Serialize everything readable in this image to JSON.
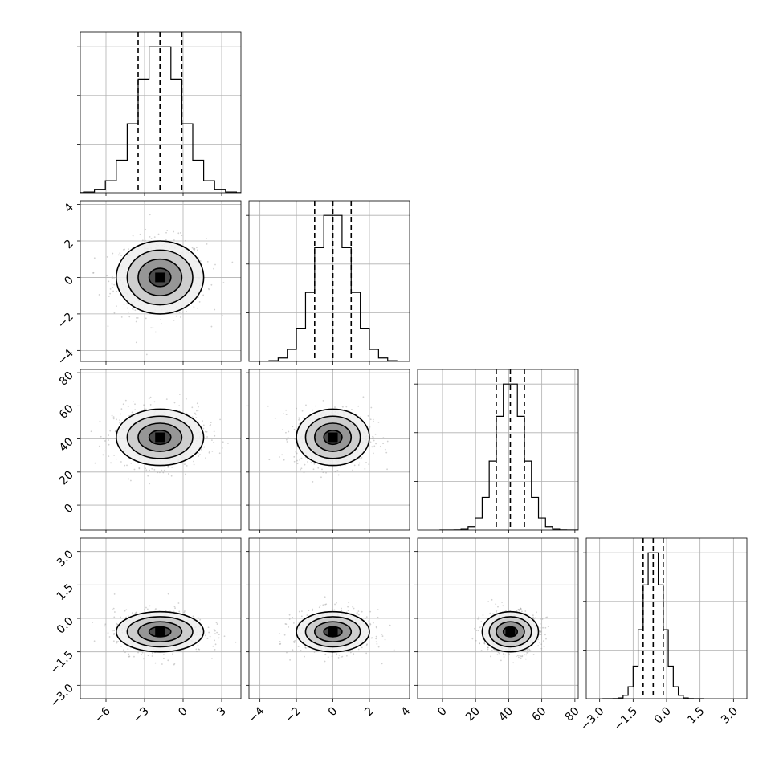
{
  "chart_data": {
    "type": "corner",
    "title": "",
    "parameters": [
      {
        "range": [
          -8,
          4.5
        ],
        "ticks": [
          -6,
          -3,
          0,
          3
        ],
        "tick_labels": [
          "−6",
          "−3",
          "0",
          "3"
        ],
        "mean": -1.8,
        "sd": 1.7,
        "quantiles": [
          -3.5,
          -1.8,
          -0.1
        ]
      },
      {
        "range": [
          -4.6,
          4.2
        ],
        "ticks": [
          -4,
          -2,
          0,
          2,
          4
        ],
        "tick_labels": [
          "−4",
          "−2",
          "0",
          "2",
          "4"
        ],
        "mean": 0.0,
        "sd": 1.0,
        "quantiles": [
          -1.0,
          0.0,
          1.0
        ]
      },
      {
        "range": [
          -15,
          82
        ],
        "ticks": [
          0,
          20,
          40,
          60,
          80
        ],
        "tick_labels": [
          "0",
          "20",
          "40",
          "60",
          "80"
        ],
        "mean": 41,
        "sd": 8.5,
        "quantiles": [
          32.5,
          41,
          49.5
        ]
      },
      {
        "range": [
          -3.6,
          3.6
        ],
        "ticks": [
          -3.0,
          -1.5,
          0.0,
          1.5,
          3.0
        ],
        "tick_labels": [
          "−3.0",
          "−1.5",
          "0.0",
          "1.5",
          "3.0"
        ],
        "mean": -0.6,
        "sd": 0.45,
        "quantiles": [
          -1.05,
          -0.6,
          -0.15
        ]
      }
    ],
    "histogram_bins": 20,
    "contour_levels_sigma": [
      0.5,
      1.0,
      1.5,
      2.0
    ],
    "grid": true,
    "colors": {
      "hist": "#000000",
      "scatter": "#9a9a9a",
      "density": "#000000"
    }
  }
}
